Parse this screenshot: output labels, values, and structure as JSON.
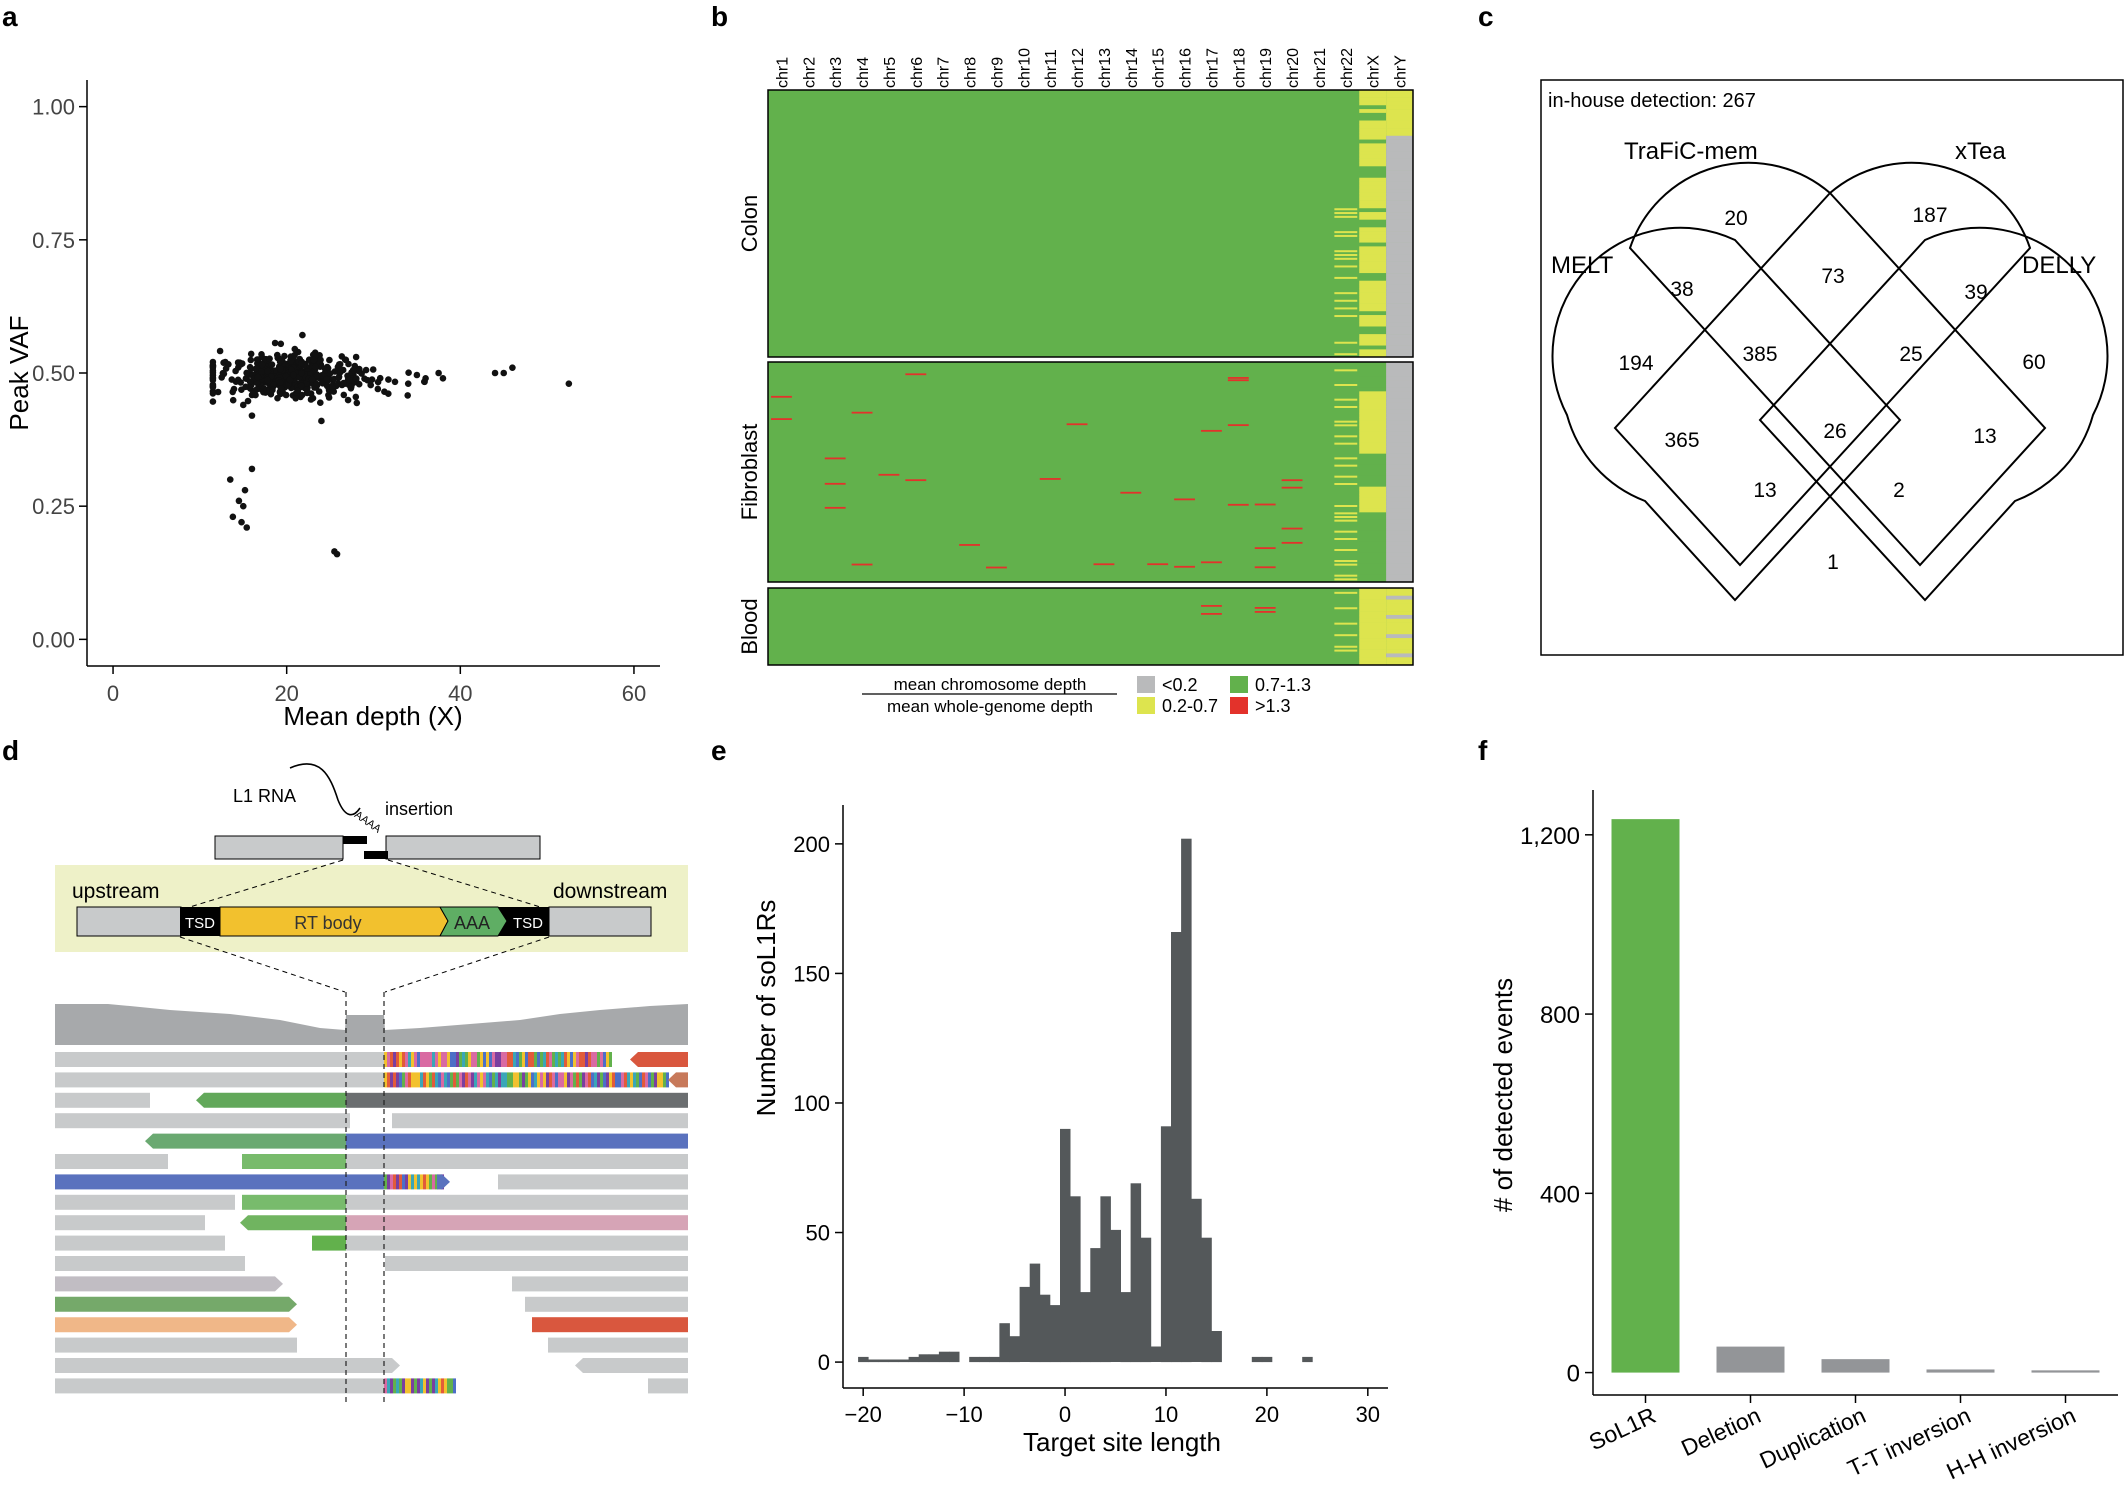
{
  "panels": {
    "a": "a",
    "b": "b",
    "c": "c",
    "d": "d",
    "e": "e",
    "f": "f"
  },
  "colors": {
    "green": "#62b14c",
    "yellow": "#dde44e",
    "grey": "#b9babb",
    "red": "#e3322b",
    "dark": "#54585a",
    "bar_grey": "#939598"
  },
  "chart_data": [
    {
      "panel": "a",
      "type": "scatter",
      "xlabel": "Mean depth (X)",
      "ylabel": "Peak VAF",
      "xlim": [
        -3,
        63
      ],
      "ylim": [
        -0.05,
        1.05
      ],
      "xticks": [
        0,
        20,
        40,
        60
      ],
      "yticks": [
        0.0,
        0.25,
        0.5,
        0.75,
        1.0
      ],
      "ytick_labels": [
        "0.00",
        "0.25",
        "0.50",
        "0.75",
        "1.00"
      ],
      "cluster": {
        "n": 520,
        "x_mean": 20,
        "x_sd": 6,
        "x_min": 11.5,
        "x_max": 38,
        "y_mean": 0.495,
        "y_sd": 0.02
      },
      "points": [
        [
          13.5,
          0.3
        ],
        [
          14.5,
          0.26
        ],
        [
          13.8,
          0.23
        ],
        [
          15.2,
          0.28
        ],
        [
          15.0,
          0.25
        ],
        [
          14.8,
          0.22
        ],
        [
          15.4,
          0.21
        ],
        [
          16,
          0.32
        ],
        [
          15,
          0.44
        ],
        [
          16,
          0.42
        ],
        [
          24,
          0.41
        ],
        [
          25.5,
          0.165
        ],
        [
          25.8,
          0.16
        ],
        [
          44,
          0.5
        ],
        [
          45,
          0.5
        ],
        [
          46,
          0.51
        ],
        [
          52.5,
          0.48
        ],
        [
          34,
          0.48
        ],
        [
          36,
          0.49
        ],
        [
          37.5,
          0.5
        ],
        [
          38,
          0.49
        ],
        [
          30.5,
          0.47
        ],
        [
          28,
          0.53
        ]
      ]
    },
    {
      "panel": "b",
      "type": "heatmap",
      "columns": [
        "chr1",
        "chr2",
        "chr3",
        "chr4",
        "chr5",
        "chr6",
        "chr7",
        "chr8",
        "chr9",
        "chr10",
        "chr11",
        "chr12",
        "chr13",
        "chr14",
        "chr15",
        "chr16",
        "chr17",
        "chr18",
        "chr19",
        "chr20",
        "chr21",
        "chr22",
        "chrX",
        "chrY"
      ],
      "groups": [
        {
          "name": "Colon",
          "rows": 70
        },
        {
          "name": "Fibroblast",
          "rows": 60
        },
        {
          "name": "Blood",
          "rows": 20
        }
      ],
      "legend_numerator": "mean chromosome depth",
      "legend_denominator": "mean whole-genome depth",
      "legend": [
        {
          "label": "<0.2",
          "color": "#b9babb"
        },
        {
          "label": "0.7-1.3",
          "color": "#62b14c"
        },
        {
          "label": "0.2-0.7",
          "color": "#dde44e"
        },
        {
          "label": ">1.3",
          "color": "#e3322b"
        }
      ]
    },
    {
      "panel": "c",
      "type": "venn",
      "title": "in-house detection: 267",
      "sets": [
        "MELT",
        "TraFiC-mem",
        "xTea",
        "DELLY"
      ],
      "regions": [
        {
          "key": "T",
          "value": 20
        },
        {
          "key": "X",
          "value": 187
        },
        {
          "key": "TX",
          "value": 73
        },
        {
          "key": "MT",
          "value": 38
        },
        {
          "key": "XD",
          "value": 39
        },
        {
          "key": "M",
          "value": 194
        },
        {
          "key": "MTX",
          "value": 385
        },
        {
          "key": "TXD",
          "value": 25
        },
        {
          "key": "D",
          "value": 60
        },
        {
          "key": "MX",
          "value": 365
        },
        {
          "key": "MTXD",
          "value": 26
        },
        {
          "key": "TD",
          "value": 13
        },
        {
          "key": "MXD",
          "value": 13
        },
        {
          "key": "MTD",
          "value": 2
        },
        {
          "key": "MD",
          "value": 1
        }
      ]
    },
    {
      "panel": "e",
      "type": "bar",
      "xlabel": "Target site length",
      "ylabel": "Number of soL1Rs",
      "xlim": [
        -22,
        32
      ],
      "ylim": [
        -10,
        215
      ],
      "xticks": [
        -20,
        -10,
        0,
        10,
        20,
        30
      ],
      "yticks": [
        0,
        50,
        100,
        150,
        200
      ],
      "categories": [
        -20,
        -19,
        -18,
        -17,
        -16,
        -15,
        -14,
        -13,
        -12,
        -11,
        -10,
        -9,
        -8,
        -7,
        -6,
        -5,
        -4,
        -3,
        -2,
        -1,
        0,
        1,
        2,
        3,
        4,
        5,
        6,
        7,
        8,
        9,
        10,
        11,
        12,
        13,
        14,
        15,
        16,
        17,
        18,
        19,
        20,
        21,
        22,
        23,
        24,
        25,
        26,
        27,
        28,
        29
      ],
      "values": [
        2,
        1,
        1,
        1,
        1,
        2,
        3,
        3,
        4,
        4,
        0,
        2,
        2,
        2,
        15,
        10,
        29,
        38,
        26,
        22,
        90,
        64,
        27,
        44,
        64,
        51,
        27,
        69,
        48,
        6,
        91,
        166,
        202,
        63,
        48,
        12,
        0,
        0,
        0,
        2,
        2,
        0,
        0,
        0,
        2,
        0,
        0,
        0,
        0,
        0
      ]
    },
    {
      "panel": "f",
      "type": "bar",
      "ylabel": "# of detected events",
      "ylim": [
        -50,
        1300
      ],
      "yticks": [
        0,
        400,
        800,
        1200
      ],
      "ytick_labels": [
        "0",
        "400",
        "800",
        "1,200"
      ],
      "categories": [
        "SoL1R",
        "Deletion",
        "Duplication",
        "T-T inversion",
        "H-H inversion"
      ],
      "values": [
        1235,
        58,
        30,
        7,
        5
      ]
    }
  ],
  "diagram": {
    "l1_rna": "L1 RNA",
    "polyA": "AAAA",
    "insertion": "insertion",
    "upstream": "upstream",
    "downstream": "downstream",
    "tsd": "TSD",
    "rt_body": "RT body",
    "aaa": "AAA"
  }
}
